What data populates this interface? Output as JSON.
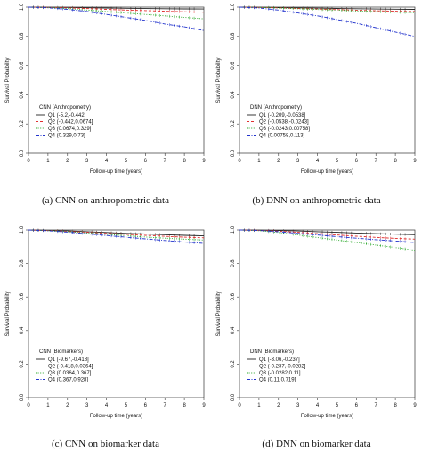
{
  "chart_data": [
    {
      "type": "line",
      "caption": "(a) CNN on anthropometric data",
      "xlabel": "Follow-up time (years)",
      "ylabel": "Survival Probability",
      "xlim": [
        0,
        9
      ],
      "ylim": [
        0,
        1.0
      ],
      "xticks": [
        "0",
        "1",
        "2",
        "3",
        "4",
        "5",
        "6",
        "7",
        "8",
        "9"
      ],
      "yticks": [
        "0.0",
        "0.2",
        "0.4",
        "0.6",
        "0.8",
        "1.0"
      ],
      "grid": false,
      "legend_title": "CNN (Anthropometry)",
      "legend_position": "bottom-left",
      "series": [
        {
          "name": "Q1 (-5.2,-0.442]",
          "color": "#222222",
          "style": "solid",
          "x": [
            0,
            1,
            2,
            3,
            4,
            5,
            6,
            7,
            8,
            9
          ],
          "values": [
            1.0,
            0.999,
            0.998,
            0.996,
            0.994,
            0.992,
            0.99,
            0.989,
            0.988,
            0.987
          ]
        },
        {
          "name": "Q2 (-0.442,0.0674]",
          "color": "#e03030",
          "style": "dashed",
          "x": [
            0,
            1,
            2,
            3,
            4,
            5,
            6,
            7,
            8,
            9
          ],
          "values": [
            1.0,
            0.998,
            0.995,
            0.99,
            0.985,
            0.98,
            0.976,
            0.972,
            0.968,
            0.965
          ]
        },
        {
          "name": "Q3 (0.0674,0.329]",
          "color": "#2aa82a",
          "style": "dotted",
          "x": [
            0,
            1,
            2,
            3,
            4,
            5,
            6,
            7,
            8,
            9
          ],
          "values": [
            1.0,
            0.997,
            0.99,
            0.98,
            0.97,
            0.96,
            0.95,
            0.94,
            0.93,
            0.92
          ]
        },
        {
          "name": "Q4 (0.329,0.73]",
          "color": "#2233cc",
          "style": "dashdot",
          "x": [
            0,
            1,
            2,
            3,
            4,
            5,
            6,
            7,
            8,
            9
          ],
          "values": [
            1.0,
            0.995,
            0.985,
            0.97,
            0.95,
            0.93,
            0.91,
            0.885,
            0.865,
            0.84
          ]
        }
      ]
    },
    {
      "type": "line",
      "caption": "(b) DNN on anthropometric data",
      "xlabel": "Follow-up time (years)",
      "ylabel": "Survival Probability",
      "xlim": [
        0,
        9
      ],
      "ylim": [
        0,
        1.0
      ],
      "xticks": [
        "0",
        "1",
        "2",
        "3",
        "4",
        "5",
        "6",
        "7",
        "8",
        "9"
      ],
      "yticks": [
        "0.0",
        "0.2",
        "0.4",
        "0.6",
        "0.8",
        "1.0"
      ],
      "grid": false,
      "legend_title": "DNN (Anthropometry)",
      "legend_position": "bottom-left",
      "series": [
        {
          "name": "Q1 (-0.209,-0.0538]",
          "color": "#222222",
          "style": "solid",
          "x": [
            0,
            1,
            2,
            3,
            4,
            5,
            6,
            7,
            8,
            9
          ],
          "values": [
            1.0,
            0.999,
            0.997,
            0.995,
            0.993,
            0.991,
            0.989,
            0.987,
            0.986,
            0.985
          ]
        },
        {
          "name": "Q2 (-0.0538,-0.0243]",
          "color": "#e03030",
          "style": "dashed",
          "x": [
            0,
            1,
            2,
            3,
            4,
            5,
            6,
            7,
            8,
            9
          ],
          "values": [
            1.0,
            0.998,
            0.995,
            0.991,
            0.987,
            0.983,
            0.979,
            0.975,
            0.972,
            0.97
          ]
        },
        {
          "name": "Q3 (-0.0243,0.00758]",
          "color": "#2aa82a",
          "style": "dotted",
          "x": [
            0,
            1,
            2,
            3,
            4,
            5,
            6,
            7,
            8,
            9
          ],
          "values": [
            1.0,
            0.998,
            0.994,
            0.989,
            0.984,
            0.979,
            0.974,
            0.969,
            0.965,
            0.962
          ]
        },
        {
          "name": "Q4 (0.00758,0.113]",
          "color": "#2233cc",
          "style": "dashdot",
          "x": [
            0,
            1,
            2,
            3,
            4,
            5,
            6,
            7,
            8,
            9
          ],
          "values": [
            1.0,
            0.994,
            0.98,
            0.96,
            0.94,
            0.915,
            0.89,
            0.86,
            0.83,
            0.8
          ]
        }
      ]
    },
    {
      "type": "line",
      "caption": "(c) CNN on biomarker data",
      "xlabel": "Follow-up time (years)",
      "ylabel": "Survival Probability",
      "xlim": [
        0,
        9
      ],
      "ylim": [
        0,
        1.0
      ],
      "xticks": [
        "0",
        "1",
        "2",
        "3",
        "4",
        "5",
        "6",
        "7",
        "8",
        "9"
      ],
      "yticks": [
        "0.0",
        "0.2",
        "0.4",
        "0.6",
        "0.8",
        "1.0"
      ],
      "grid": false,
      "legend_title": "CNN (Biomarkers)",
      "legend_position": "bottom-left",
      "series": [
        {
          "name": "Q1 (-9.67,-0.418]",
          "color": "#222222",
          "style": "solid",
          "x": [
            0,
            1,
            2,
            3,
            4,
            5,
            6,
            7,
            8,
            9
          ],
          "values": [
            1.0,
            0.998,
            0.995,
            0.99,
            0.985,
            0.98,
            0.976,
            0.972,
            0.968,
            0.965
          ]
        },
        {
          "name": "Q2 (-0.418,0.0364]",
          "color": "#e03030",
          "style": "dashed",
          "x": [
            0,
            1,
            2,
            3,
            4,
            5,
            6,
            7,
            8,
            9
          ],
          "values": [
            1.0,
            0.997,
            0.992,
            0.986,
            0.98,
            0.974,
            0.968,
            0.962,
            0.957,
            0.953
          ]
        },
        {
          "name": "Q3 (0.0364,0.367]",
          "color": "#2aa82a",
          "style": "dotted",
          "x": [
            0,
            1,
            2,
            3,
            4,
            5,
            6,
            7,
            8,
            9
          ],
          "values": [
            1.0,
            0.996,
            0.99,
            0.982,
            0.974,
            0.966,
            0.958,
            0.951,
            0.945,
            0.94
          ]
        },
        {
          "name": "Q4 (0.367,0.928]",
          "color": "#2233cc",
          "style": "dashdot",
          "x": [
            0,
            1,
            2,
            3,
            4,
            5,
            6,
            7,
            8,
            9
          ],
          "values": [
            1.0,
            0.995,
            0.987,
            0.977,
            0.967,
            0.957,
            0.947,
            0.937,
            0.928,
            0.92
          ]
        }
      ]
    },
    {
      "type": "line",
      "caption": "(d) DNN on biomarker data",
      "xlabel": "Follow-up time (years)",
      "ylabel": "Survival Probability",
      "xlim": [
        0,
        9
      ],
      "ylim": [
        0,
        1.0
      ],
      "xticks": [
        "0",
        "1",
        "2",
        "3",
        "4",
        "5",
        "6",
        "7",
        "8",
        "9"
      ],
      "yticks": [
        "0.0",
        "0.2",
        "0.4",
        "0.6",
        "0.8",
        "1.0"
      ],
      "grid": false,
      "legend_title": "DNN (Biomarkers)",
      "legend_position": "bottom-left",
      "series": [
        {
          "name": "Q1 (-3.06,-0.237]",
          "color": "#222222",
          "style": "solid",
          "x": [
            0,
            1,
            2,
            3,
            4,
            5,
            6,
            7,
            8,
            9
          ],
          "values": [
            1.0,
            0.999,
            0.997,
            0.994,
            0.99,
            0.986,
            0.982,
            0.978,
            0.975,
            0.972
          ]
        },
        {
          "name": "Q2 (-0.237,-0.0282]",
          "color": "#e03030",
          "style": "dashed",
          "x": [
            0,
            1,
            2,
            3,
            4,
            5,
            6,
            7,
            8,
            9
          ],
          "values": [
            1.0,
            0.998,
            0.993,
            0.986,
            0.978,
            0.97,
            0.963,
            0.956,
            0.95,
            0.945
          ]
        },
        {
          "name": "Q3 (-0.0282,0.11]",
          "color": "#2aa82a",
          "style": "dotted",
          "x": [
            0,
            1,
            2,
            3,
            4,
            5,
            6,
            7,
            8,
            9
          ],
          "values": [
            1.0,
            0.996,
            0.985,
            0.97,
            0.955,
            0.94,
            0.925,
            0.91,
            0.895,
            0.88
          ]
        },
        {
          "name": "Q4 (0.11,0.719]",
          "color": "#2233cc",
          "style": "dashdot",
          "x": [
            0,
            1,
            2,
            3,
            4,
            5,
            6,
            7,
            8,
            9
          ],
          "values": [
            1.0,
            0.997,
            0.99,
            0.98,
            0.97,
            0.96,
            0.951,
            0.942,
            0.934,
            0.925
          ]
        }
      ]
    }
  ]
}
